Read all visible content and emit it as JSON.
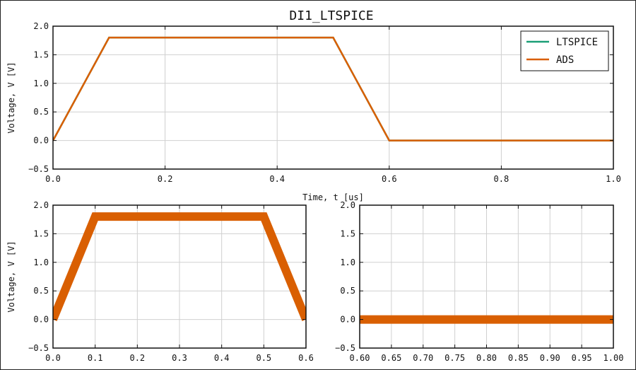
{
  "title": "DI1_LTSPICE",
  "colors": {
    "ltspice": "#1b9e77",
    "ads": "#d95f02",
    "grid": "#d0d0d0",
    "axis": "#111111"
  },
  "chart_data": [
    {
      "type": "line",
      "title": "DI1_LTSPICE",
      "xlabel": "Time, t [us]",
      "ylabel": "Voltage, V [V]",
      "xlim": [
        0.0,
        1.0
      ],
      "ylim": [
        -0.5,
        2.0
      ],
      "xticks": [
        0.0,
        0.2,
        0.4,
        0.6,
        0.8,
        1.0
      ],
      "xtick_labels": [
        "0.0",
        "0.2",
        "0.4",
        "0.6",
        "0.8",
        "1.0"
      ],
      "yticks": [
        -0.5,
        0.0,
        0.5,
        1.0,
        1.5,
        2.0
      ],
      "ytick_labels": [
        "−0.5",
        "0.0",
        "0.5",
        "1.0",
        "1.5",
        "2.0"
      ],
      "grid": true,
      "legend": {
        "placement": "top-right",
        "entries": [
          "LTSPICE",
          "ADS"
        ]
      },
      "series": [
        {
          "name": "LTSPICE",
          "color": "#1b9e77",
          "x": [
            0.0,
            0.1,
            0.5,
            0.6,
            1.0
          ],
          "y": [
            0.0,
            1.8,
            1.8,
            0.0,
            0.0
          ]
        },
        {
          "name": "ADS",
          "color": "#d95f02",
          "x": [
            0.0,
            0.1,
            0.5,
            0.6,
            1.0
          ],
          "y": [
            0.0,
            1.8,
            1.8,
            0.0,
            0.0
          ]
        }
      ]
    },
    {
      "type": "line",
      "title": "",
      "xlabel": "",
      "ylabel": "Voltage, V [V]",
      "xlim": [
        0.0,
        0.6
      ],
      "ylim": [
        -0.5,
        2.0
      ],
      "xticks": [
        0.0,
        0.1,
        0.2,
        0.3,
        0.4,
        0.5,
        0.6
      ],
      "xtick_labels": [
        "0.0",
        "0.1",
        "0.2",
        "0.3",
        "0.4",
        "0.5",
        "0.6"
      ],
      "yticks": [
        -0.5,
        0.0,
        0.5,
        1.0,
        1.5,
        2.0
      ],
      "ytick_labels": [
        "−0.5",
        "0.0",
        "0.5",
        "1.0",
        "1.5",
        "2.0"
      ],
      "grid": true,
      "series": [
        {
          "color": "#d95f02",
          "x": [
            0.0,
            0.1,
            0.5,
            0.6
          ],
          "y": [
            0.0,
            1.8,
            1.8,
            0.0
          ]
        }
      ]
    },
    {
      "type": "line",
      "title": "",
      "xlabel": "",
      "ylabel": "",
      "xlim": [
        0.6,
        1.0
      ],
      "ylim": [
        -0.5,
        2.0
      ],
      "xticks": [
        0.6,
        0.65,
        0.7,
        0.75,
        0.8,
        0.85,
        0.9,
        0.95,
        1.0
      ],
      "xtick_labels": [
        "0.60",
        "0.65",
        "0.70",
        "0.75",
        "0.80",
        "0.85",
        "0.90",
        "0.95",
        "1.00"
      ],
      "yticks": [
        -0.5,
        0.0,
        0.5,
        1.0,
        1.5,
        2.0
      ],
      "ytick_labels": [
        "−0.5",
        "0.0",
        "0.5",
        "1.0",
        "1.5",
        "2.0"
      ],
      "grid": true,
      "series": [
        {
          "color": "#d95f02",
          "x": [
            0.6,
            1.0
          ],
          "y": [
            0.0,
            0.0
          ]
        }
      ]
    }
  ]
}
